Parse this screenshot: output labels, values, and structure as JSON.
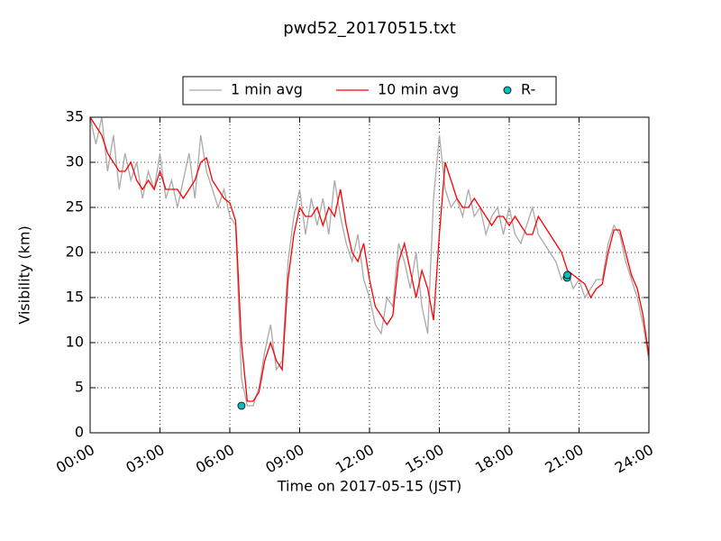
{
  "chart_data": {
    "type": "line",
    "title": "pwd52_20170515.txt",
    "xlabel": "Time on 2017-05-15 (JST)",
    "ylabel": "Visibility (km)",
    "xlim": [
      "00:00",
      "24:00"
    ],
    "xticks": [
      "00:00",
      "03:00",
      "06:00",
      "09:00",
      "12:00",
      "15:00",
      "18:00",
      "21:00",
      "24:00"
    ],
    "ylim": [
      0,
      35
    ],
    "yticks": [
      0,
      5,
      10,
      15,
      20,
      25,
      30,
      35
    ],
    "grid": true,
    "legend": "upper center",
    "x": [
      "00:00",
      "00:15",
      "00:30",
      "00:45",
      "01:00",
      "01:15",
      "01:30",
      "01:45",
      "02:00",
      "02:15",
      "02:30",
      "02:45",
      "03:00",
      "03:15",
      "03:30",
      "03:45",
      "04:00",
      "04:15",
      "04:30",
      "04:45",
      "05:00",
      "05:15",
      "05:30",
      "05:45",
      "06:00",
      "06:15",
      "06:30",
      "06:45",
      "07:00",
      "07:15",
      "07:30",
      "07:45",
      "08:00",
      "08:15",
      "08:30",
      "08:45",
      "09:00",
      "09:15",
      "09:30",
      "09:45",
      "10:00",
      "10:15",
      "10:30",
      "10:45",
      "11:00",
      "11:15",
      "11:30",
      "11:45",
      "12:00",
      "12:15",
      "12:30",
      "12:45",
      "13:00",
      "13:15",
      "13:30",
      "13:45",
      "14:00",
      "14:15",
      "14:30",
      "14:45",
      "15:00",
      "15:15",
      "15:30",
      "15:45",
      "16:00",
      "16:15",
      "16:30",
      "16:45",
      "17:00",
      "17:15",
      "17:30",
      "17:45",
      "18:00",
      "18:15",
      "18:30",
      "18:45",
      "19:00",
      "19:15",
      "19:30",
      "19:45",
      "20:00",
      "20:15",
      "20:30",
      "20:45",
      "21:00",
      "21:15",
      "21:30",
      "21:45",
      "22:00",
      "22:15",
      "22:30",
      "22:45",
      "23:00",
      "23:15",
      "23:30",
      "23:45",
      "24:00"
    ],
    "series": [
      {
        "name": "1 min avg",
        "color": "#aaaaaa",
        "type": "line",
        "values": [
          35,
          32,
          35,
          29,
          33,
          27,
          31,
          28,
          30,
          26,
          29,
          27,
          31,
          26,
          28,
          25,
          28,
          31,
          26,
          33,
          29,
          27,
          25,
          27,
          24,
          23,
          6,
          3,
          3,
          5,
          9,
          12,
          7,
          8,
          19,
          24,
          27,
          22,
          26,
          23,
          26,
          22,
          28,
          24,
          21,
          19,
          22,
          17,
          15,
          12,
          11,
          15,
          14,
          21,
          19,
          16,
          20,
          14,
          11,
          26,
          33,
          27,
          25,
          26,
          24,
          27,
          24,
          25,
          22,
          24,
          25,
          22,
          25,
          22,
          21,
          23,
          25,
          22,
          21,
          20,
          19,
          17,
          18,
          16,
          17,
          15,
          16,
          17,
          17,
          21,
          23,
          22,
          19,
          17,
          15,
          12,
          8
        ]
      },
      {
        "name": "10 min avg",
        "color": "#ff0000",
        "type": "line",
        "values": [
          35,
          34,
          33,
          31,
          30,
          29,
          29,
          30,
          28,
          27,
          28,
          27,
          29,
          27,
          27,
          27,
          26,
          27,
          28,
          30,
          30.5,
          28,
          27,
          26,
          25.5,
          23.5,
          10,
          3.5,
          3.5,
          4.5,
          8,
          10,
          8,
          7,
          17,
          22,
          25,
          24,
          24,
          25,
          23,
          25,
          24,
          27,
          23,
          20,
          19,
          21,
          17,
          14,
          13,
          12,
          13,
          19,
          21,
          18,
          15,
          18,
          16,
          12.5,
          22,
          30,
          28,
          26,
          25,
          25,
          26,
          25,
          24,
          23,
          24,
          24,
          23,
          24,
          23,
          22,
          22,
          24,
          23,
          22,
          21,
          20,
          18,
          17.5,
          17,
          16.5,
          15,
          16,
          16.5,
          20,
          22.5,
          22.5,
          20,
          17.5,
          16,
          13,
          8.5
        ]
      },
      {
        "name": "R-",
        "color": "#00bfbf",
        "type": "scatter",
        "x": [
          "06:30",
          "20:29",
          "20:30"
        ],
        "values": [
          3,
          17.2,
          17.5
        ]
      }
    ]
  }
}
